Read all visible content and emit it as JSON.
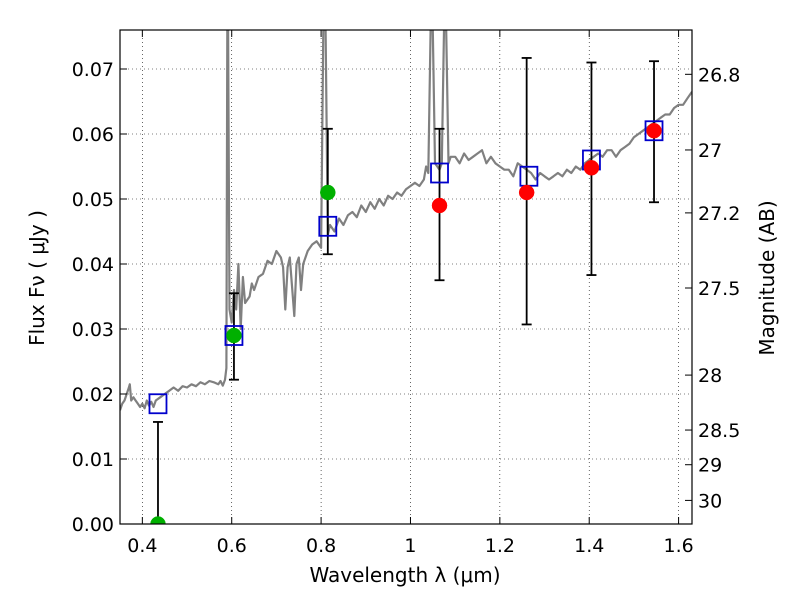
{
  "chart_data": {
    "type": "scatter",
    "xlabel": "Wavelength  λ (μm)",
    "ylabel": "Flux  Fν  ( μJy )",
    "y2label": "Magnitude (AB)",
    "xlim": [
      0.35,
      1.63
    ],
    "ylim": [
      0.0,
      0.076
    ],
    "grid": true,
    "x_ticks": [
      {
        "v": 0.4,
        "label": "0.4"
      },
      {
        "v": 0.6,
        "label": "0.6"
      },
      {
        "v": 0.8,
        "label": "0.8"
      },
      {
        "v": 1.0,
        "label": "1"
      },
      {
        "v": 1.2,
        "label": "1.2"
      },
      {
        "v": 1.4,
        "label": "1.4"
      },
      {
        "v": 1.6,
        "label": "1.6"
      }
    ],
    "y_ticks": [
      {
        "v": 0.0,
        "label": "0.00"
      },
      {
        "v": 0.01,
        "label": "0.01"
      },
      {
        "v": 0.02,
        "label": "0.02"
      },
      {
        "v": 0.03,
        "label": "0.03"
      },
      {
        "v": 0.04,
        "label": "0.04"
      },
      {
        "v": 0.05,
        "label": "0.05"
      },
      {
        "v": 0.06,
        "label": "0.06"
      },
      {
        "v": 0.07,
        "label": "0.07"
      }
    ],
    "y2_ticks": [
      {
        "v": 26.8,
        "label": "26.8"
      },
      {
        "v": 27.0,
        "label": "27"
      },
      {
        "v": 27.2,
        "label": "27.2"
      },
      {
        "v": 27.5,
        "label": "27.5"
      },
      {
        "v": 28.0,
        "label": "28"
      },
      {
        "v": 28.5,
        "label": "28.5"
      },
      {
        "v": 29.0,
        "label": "29"
      },
      {
        "v": 30.0,
        "label": "30"
      }
    ],
    "spectrum": {
      "color": "#808080",
      "points": [
        [
          0.35,
          0.0175
        ],
        [
          0.355,
          0.0185
        ],
        [
          0.36,
          0.019
        ],
        [
          0.365,
          0.02
        ],
        [
          0.37,
          0.021
        ],
        [
          0.372,
          0.0215
        ],
        [
          0.375,
          0.019
        ],
        [
          0.38,
          0.0195
        ],
        [
          0.385,
          0.019
        ],
        [
          0.39,
          0.0185
        ],
        [
          0.395,
          0.018
        ],
        [
          0.4,
          0.0185
        ],
        [
          0.405,
          0.0178
        ],
        [
          0.41,
          0.019
        ],
        [
          0.415,
          0.0182
        ],
        [
          0.42,
          0.0188
        ],
        [
          0.425,
          0.018
        ],
        [
          0.43,
          0.019
        ],
        [
          0.44,
          0.0195
        ],
        [
          0.45,
          0.02
        ],
        [
          0.46,
          0.0205
        ],
        [
          0.47,
          0.021
        ],
        [
          0.48,
          0.0205
        ],
        [
          0.49,
          0.0212
        ],
        [
          0.5,
          0.021
        ],
        [
          0.51,
          0.0215
        ],
        [
          0.52,
          0.0212
        ],
        [
          0.53,
          0.0218
        ],
        [
          0.54,
          0.0215
        ],
        [
          0.55,
          0.022
        ],
        [
          0.56,
          0.0218
        ],
        [
          0.57,
          0.0215
        ],
        [
          0.575,
          0.022
        ],
        [
          0.58,
          0.0213
        ],
        [
          0.585,
          0.0222
        ],
        [
          0.588,
          0.024
        ],
        [
          0.59,
          0.076
        ],
        [
          0.592,
          0.076
        ],
        [
          0.595,
          0.033
        ],
        [
          0.6,
          0.031
        ],
        [
          0.605,
          0.036
        ],
        [
          0.61,
          0.033
        ],
        [
          0.615,
          0.04
        ],
        [
          0.62,
          0.03
        ],
        [
          0.625,
          0.038
        ],
        [
          0.63,
          0.034
        ],
        [
          0.64,
          0.035
        ],
        [
          0.645,
          0.037
        ],
        [
          0.65,
          0.036
        ],
        [
          0.66,
          0.038
        ],
        [
          0.67,
          0.0385
        ],
        [
          0.68,
          0.0405
        ],
        [
          0.69,
          0.04
        ],
        [
          0.7,
          0.042
        ],
        [
          0.71,
          0.041
        ],
        [
          0.715,
          0.0395
        ],
        [
          0.72,
          0.033
        ],
        [
          0.725,
          0.0395
        ],
        [
          0.73,
          0.041
        ],
        [
          0.74,
          0.032
        ],
        [
          0.745,
          0.04
        ],
        [
          0.75,
          0.041
        ],
        [
          0.755,
          0.036
        ],
        [
          0.76,
          0.04
        ],
        [
          0.77,
          0.042
        ],
        [
          0.78,
          0.043
        ],
        [
          0.79,
          0.0435
        ],
        [
          0.8,
          0.0425
        ],
        [
          0.805,
          0.076
        ],
        [
          0.81,
          0.076
        ],
        [
          0.815,
          0.0445
        ],
        [
          0.82,
          0.046
        ],
        [
          0.83,
          0.045
        ],
        [
          0.84,
          0.047
        ],
        [
          0.85,
          0.046
        ],
        [
          0.86,
          0.0475
        ],
        [
          0.87,
          0.048
        ],
        [
          0.88,
          0.0472
        ],
        [
          0.89,
          0.049
        ],
        [
          0.9,
          0.048
        ],
        [
          0.91,
          0.0495
        ],
        [
          0.92,
          0.0485
        ],
        [
          0.93,
          0.05
        ],
        [
          0.94,
          0.049
        ],
        [
          0.95,
          0.0505
        ],
        [
          0.96,
          0.05
        ],
        [
          0.97,
          0.051
        ],
        [
          0.98,
          0.0505
        ],
        [
          0.99,
          0.0515
        ],
        [
          1.0,
          0.052
        ],
        [
          1.01,
          0.0525
        ],
        [
          1.02,
          0.052
        ],
        [
          1.03,
          0.053
        ],
        [
          1.035,
          0.055
        ],
        [
          1.04,
          0.054
        ],
        [
          1.045,
          0.076
        ],
        [
          1.05,
          0.076
        ],
        [
          1.055,
          0.0555
        ],
        [
          1.06,
          0.055
        ],
        [
          1.065,
          0.0545
        ],
        [
          1.07,
          0.0555
        ],
        [
          1.075,
          0.076
        ],
        [
          1.08,
          0.076
        ],
        [
          1.085,
          0.0555
        ],
        [
          1.09,
          0.0565
        ],
        [
          1.1,
          0.0565
        ],
        [
          1.11,
          0.0555
        ],
        [
          1.12,
          0.057
        ],
        [
          1.13,
          0.056
        ],
        [
          1.14,
          0.0565
        ],
        [
          1.15,
          0.057
        ],
        [
          1.16,
          0.0575
        ],
        [
          1.17,
          0.0555
        ],
        [
          1.18,
          0.0565
        ],
        [
          1.19,
          0.0555
        ],
        [
          1.2,
          0.055
        ],
        [
          1.21,
          0.0545
        ],
        [
          1.22,
          0.0545
        ],
        [
          1.23,
          0.0535
        ],
        [
          1.24,
          0.0555
        ],
        [
          1.25,
          0.055
        ],
        [
          1.26,
          0.0545
        ],
        [
          1.27,
          0.054
        ],
        [
          1.28,
          0.053
        ],
        [
          1.29,
          0.054
        ],
        [
          1.3,
          0.0535
        ],
        [
          1.31,
          0.053
        ],
        [
          1.32,
          0.0535
        ],
        [
          1.33,
          0.054
        ],
        [
          1.34,
          0.0535
        ],
        [
          1.35,
          0.0545
        ],
        [
          1.36,
          0.054
        ],
        [
          1.37,
          0.055
        ],
        [
          1.38,
          0.0545
        ],
        [
          1.39,
          0.0555
        ],
        [
          1.4,
          0.056
        ],
        [
          1.41,
          0.0565
        ],
        [
          1.42,
          0.057
        ],
        [
          1.43,
          0.0565
        ],
        [
          1.44,
          0.0575
        ],
        [
          1.45,
          0.0575
        ],
        [
          1.46,
          0.0565
        ],
        [
          1.47,
          0.0575
        ],
        [
          1.48,
          0.058
        ],
        [
          1.49,
          0.0585
        ],
        [
          1.5,
          0.0595
        ],
        [
          1.51,
          0.06
        ],
        [
          1.52,
          0.0605
        ],
        [
          1.53,
          0.061
        ],
        [
          1.54,
          0.0615
        ],
        [
          1.55,
          0.062
        ],
        [
          1.56,
          0.0625
        ],
        [
          1.57,
          0.063
        ],
        [
          1.58,
          0.063
        ],
        [
          1.59,
          0.064
        ],
        [
          1.6,
          0.0645
        ],
        [
          1.61,
          0.0645
        ],
        [
          1.62,
          0.0655
        ],
        [
          1.63,
          0.0665
        ]
      ]
    },
    "model_points": {
      "color": "#0000cc",
      "points": [
        [
          0.435,
          0.0185
        ],
        [
          0.605,
          0.029
        ],
        [
          0.815,
          0.0458
        ],
        [
          1.065,
          0.054
        ],
        [
          1.265,
          0.0535
        ],
        [
          1.405,
          0.056
        ],
        [
          1.545,
          0.0605
        ]
      ]
    },
    "observed_points": {
      "points": [
        {
          "x": 0.435,
          "y": 0.0,
          "ylow": 0.0,
          "yhigh": 0.0157,
          "color": "#00b000"
        },
        {
          "x": 0.605,
          "y": 0.029,
          "ylow": 0.0222,
          "yhigh": 0.0355,
          "color": "#00b000"
        },
        {
          "x": 0.815,
          "y": 0.051,
          "ylow": 0.0415,
          "yhigh": 0.0608,
          "color": "#00b000"
        },
        {
          "x": 1.065,
          "y": 0.049,
          "ylow": 0.0375,
          "yhigh": 0.0608,
          "color": "#ff0000"
        },
        {
          "x": 1.26,
          "y": 0.051,
          "ylow": 0.0307,
          "yhigh": 0.0717,
          "color": "#ff0000"
        },
        {
          "x": 1.405,
          "y": 0.0548,
          "ylow": 0.0383,
          "yhigh": 0.071,
          "color": "#ff0000"
        },
        {
          "x": 1.545,
          "y": 0.0605,
          "ylow": 0.0495,
          "yhigh": 0.0712,
          "color": "#ff0000"
        }
      ]
    }
  }
}
